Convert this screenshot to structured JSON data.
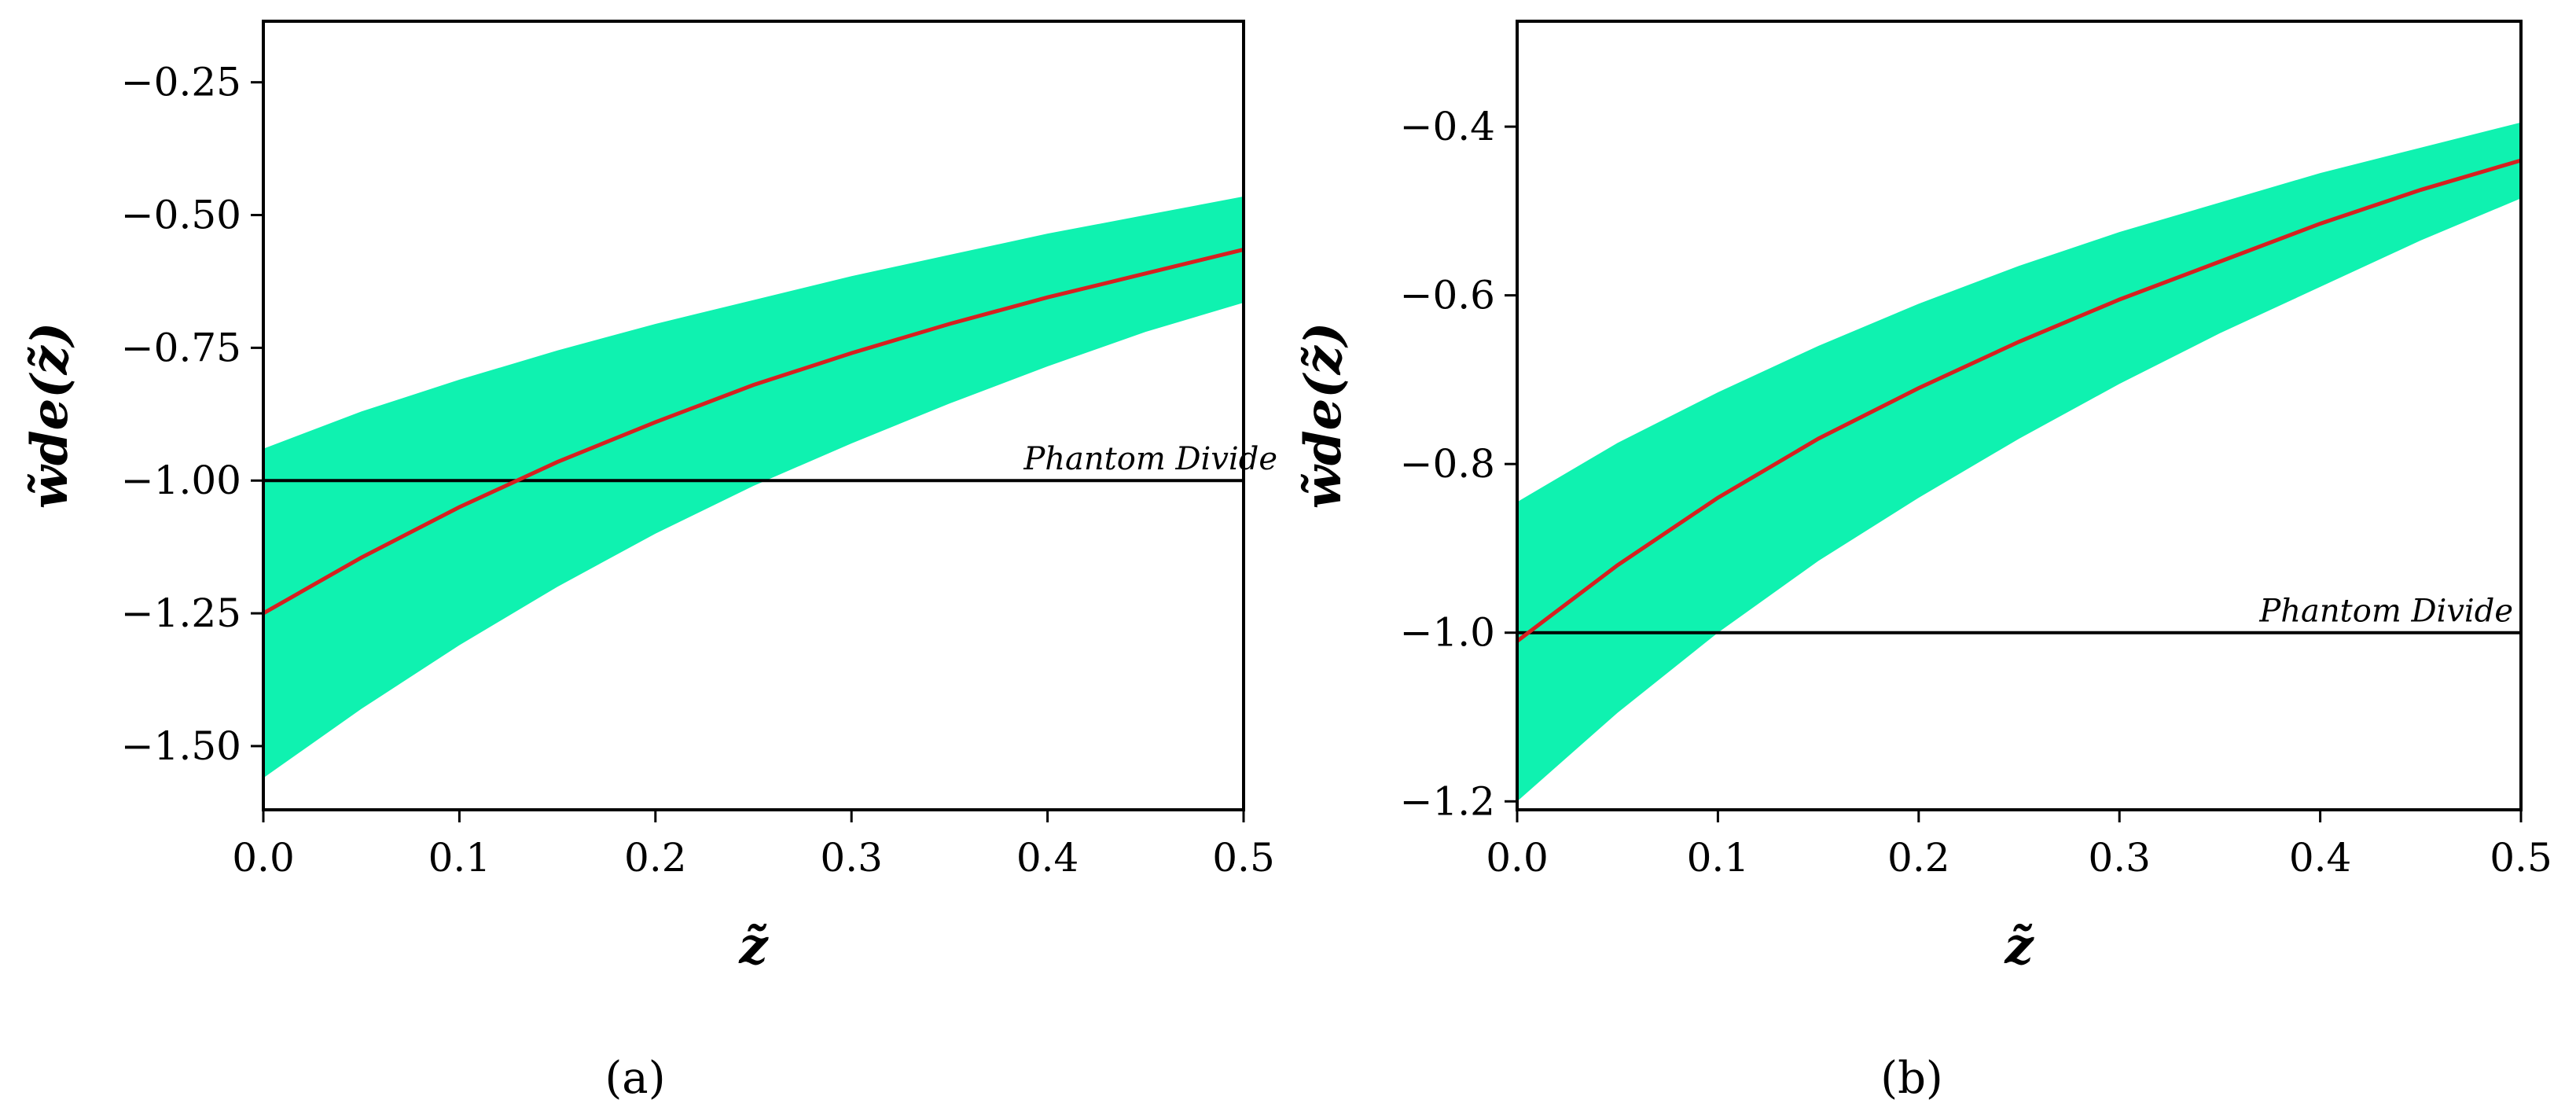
{
  "chart_data": [
    {
      "type": "line",
      "panel": "(a)",
      "xlabel": "z̃",
      "ylabel": "w̃de(z̃)",
      "xlim": [
        0.0,
        0.5
      ],
      "ylim": [
        -1.62,
        -0.135
      ],
      "xticks": [
        0.0,
        0.1,
        0.2,
        0.3,
        0.4,
        0.5
      ],
      "xtick_labels": [
        "0.0",
        "0.1",
        "0.2",
        "0.3",
        "0.4",
        "0.5"
      ],
      "yticks": [
        -0.25,
        -0.5,
        -0.75,
        -1.0,
        -1.25,
        -1.5
      ],
      "ytick_labels": [
        "−0.25",
        "−0.50",
        "−0.75",
        "−1.00",
        "−1.25",
        "−1.50"
      ],
      "band_color": "#0ff2b0",
      "curve_color": "#d62020",
      "reference_line": {
        "y": -1.0,
        "label": "Phantom Divide",
        "color": "#000000"
      },
      "x": [
        0.0,
        0.05,
        0.1,
        0.15,
        0.2,
        0.25,
        0.3,
        0.35,
        0.4,
        0.45,
        0.5
      ],
      "series": [
        {
          "name": "mean",
          "values": [
            -1.25,
            -1.145,
            -1.05,
            -0.965,
            -0.89,
            -0.82,
            -0.76,
            -0.705,
            -0.655,
            -0.61,
            -0.565
          ]
        },
        {
          "name": "upper",
          "values": [
            -0.94,
            -0.87,
            -0.81,
            -0.755,
            -0.705,
            -0.66,
            -0.615,
            -0.575,
            -0.535,
            -0.5,
            -0.465
          ]
        },
        {
          "name": "lower",
          "values": [
            -1.56,
            -1.43,
            -1.31,
            -1.2,
            -1.1,
            -1.01,
            -0.93,
            -0.855,
            -0.785,
            -0.72,
            -0.665
          ]
        }
      ]
    },
    {
      "type": "line",
      "panel": "(b)",
      "xlabel": "z̃",
      "ylabel": "w̃de(z̃)",
      "xlim": [
        0.0,
        0.5
      ],
      "ylim": [
        -1.21,
        -0.275
      ],
      "xticks": [
        0.0,
        0.1,
        0.2,
        0.3,
        0.4,
        0.5
      ],
      "xtick_labels": [
        "0.0",
        "0.1",
        "0.2",
        "0.3",
        "0.4",
        "0.5"
      ],
      "yticks": [
        -0.4,
        -0.6,
        -0.8,
        -1.0,
        -1.2
      ],
      "ytick_labels": [
        "−0.4",
        "−0.6",
        "−0.8",
        "−1.0",
        "−1.2"
      ],
      "band_color": "#0ff2b0",
      "curve_color": "#d62020",
      "reference_line": {
        "y": -1.0,
        "label": "Phantom Divide",
        "color": "#000000"
      },
      "x": [
        0.0,
        0.05,
        0.1,
        0.15,
        0.2,
        0.25,
        0.3,
        0.35,
        0.4,
        0.45,
        0.5
      ],
      "series": [
        {
          "name": "mean",
          "values": [
            -1.01,
            -0.92,
            -0.84,
            -0.77,
            -0.71,
            -0.655,
            -0.605,
            -0.56,
            -0.515,
            -0.475,
            -0.44
          ]
        },
        {
          "name": "upper",
          "values": [
            -0.845,
            -0.775,
            -0.715,
            -0.66,
            -0.61,
            -0.565,
            -0.525,
            -0.49,
            -0.455,
            -0.425,
            -0.395
          ]
        },
        {
          "name": "lower",
          "values": [
            -1.2,
            -1.095,
            -1.0,
            -0.915,
            -0.84,
            -0.77,
            -0.705,
            -0.645,
            -0.59,
            -0.535,
            -0.485
          ]
        }
      ]
    }
  ],
  "captions": [
    "(a)",
    "(b)"
  ]
}
